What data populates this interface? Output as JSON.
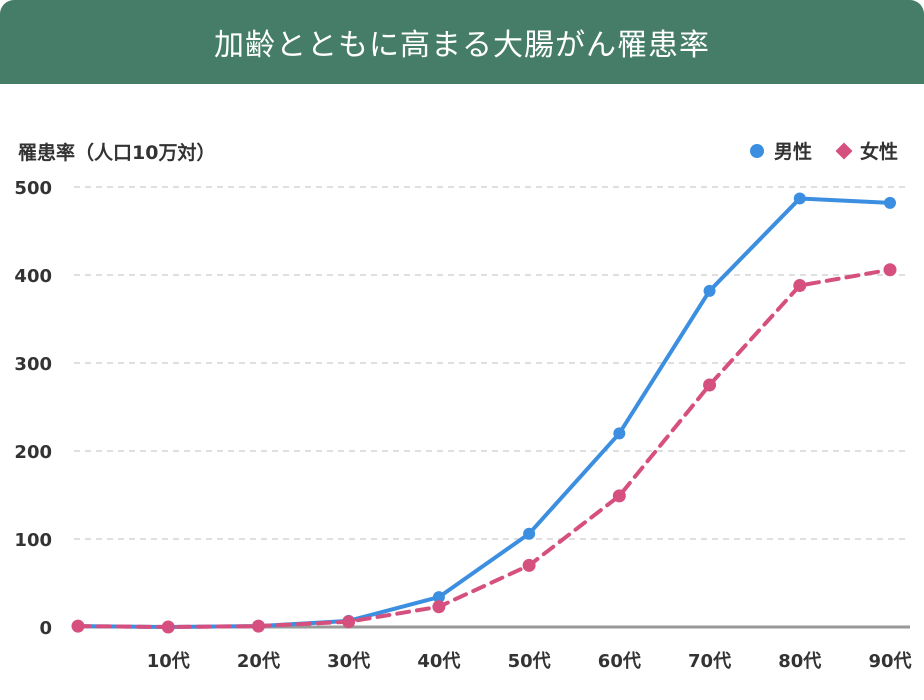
{
  "header": {
    "title": "加齢とともに高まる大腸がん罹患率"
  },
  "colors": {
    "header_bg": "#457d68",
    "male": "#3b8ee0",
    "female": "#d6507f",
    "grid": "#cccccc",
    "axis": "#999999"
  },
  "chart_data": {
    "type": "line",
    "title": "加齢とともに高まる大腸がん罹患率",
    "ylabel": "罹患率（人口10万対）",
    "xlabel": "",
    "categories": [
      "",
      "10代",
      "20代",
      "30代",
      "40代",
      "50代",
      "60代",
      "70代",
      "80代",
      "90代"
    ],
    "ylim": [
      0,
      500
    ],
    "yticks": [
      0,
      100,
      200,
      300,
      400,
      500
    ],
    "grid": true,
    "legend_position": "top-right",
    "series": [
      {
        "name": "男性",
        "marker": "circle",
        "line": "solid",
        "color": "#3b8ee0",
        "values": [
          1,
          0,
          1,
          7,
          34,
          106,
          220,
          382,
          487,
          482
        ]
      },
      {
        "name": "女性",
        "marker": "diamond",
        "line": "dashed",
        "color": "#d6507f",
        "values": [
          1,
          0,
          1,
          6,
          23,
          70,
          149,
          275,
          388,
          406
        ]
      }
    ]
  }
}
